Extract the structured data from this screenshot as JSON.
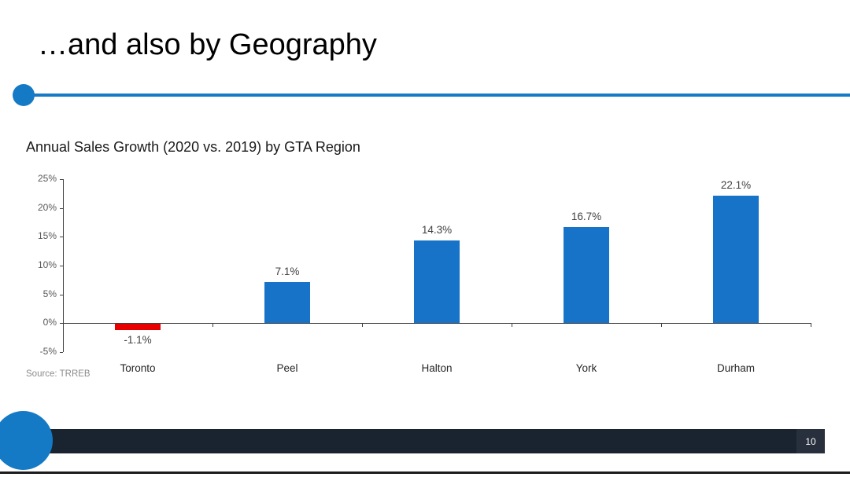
{
  "slide": {
    "title": "…and also by Geography",
    "page_number": "10",
    "source": "Source: TRREB",
    "accent_color": "#157AC5",
    "footer_color": "#1A2431",
    "page_box_color": "#28303E"
  },
  "chart_data": {
    "type": "bar",
    "title": "Annual Sales Growth (2020 vs. 2019) by GTA Region",
    "categories": [
      "Toronto",
      "Peel",
      "Halton",
      "York",
      "Durham"
    ],
    "values": [
      -1.1,
      7.1,
      14.3,
      16.7,
      22.1
    ],
    "value_labels": [
      "-1.1%",
      "7.1%",
      "14.3%",
      "16.7%",
      "22.1%"
    ],
    "bar_colors": [
      "#E80000",
      "#1673C8",
      "#1673C8",
      "#1673C8",
      "#1673C8"
    ],
    "xlabel": "",
    "ylabel": "",
    "ylim": [
      -5,
      25
    ],
    "yticks": [
      "25%",
      "20%",
      "15%",
      "10%",
      "5%",
      "0%",
      "-5%"
    ],
    "grid": false,
    "legend": "none"
  }
}
